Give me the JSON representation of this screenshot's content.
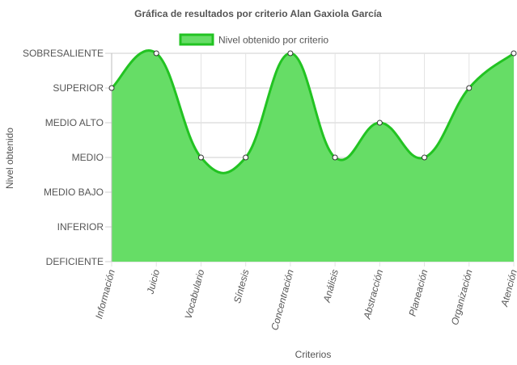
{
  "chart_data": {
    "type": "area",
    "title": "Gráfica de resultados por criterio Alan Gaxiola García",
    "xlabel": "Criterios",
    "ylabel": "Nivel obtenido",
    "categories": [
      "Información",
      "Juicio",
      "Vocabulario",
      "Síntesis",
      "Concentración",
      "Análisis",
      "Abstracción",
      "Planeación",
      "Organización",
      "Atención"
    ],
    "levels": [
      "DEFICIENTE",
      "INFERIOR",
      "MEDIO BAJO",
      "MEDIO",
      "MEDIO ALTO",
      "SUPERIOR",
      "SOBRESALIENTE"
    ],
    "ylim": [
      0,
      6
    ],
    "series": [
      {
        "name": "Nivel obtenido por criterio",
        "values": [
          5,
          6,
          3,
          3,
          6,
          3,
          4,
          3,
          5,
          6
        ],
        "color": "#22c322",
        "fill": "#66dd66"
      }
    ],
    "legend_position": "top",
    "grid": true
  }
}
